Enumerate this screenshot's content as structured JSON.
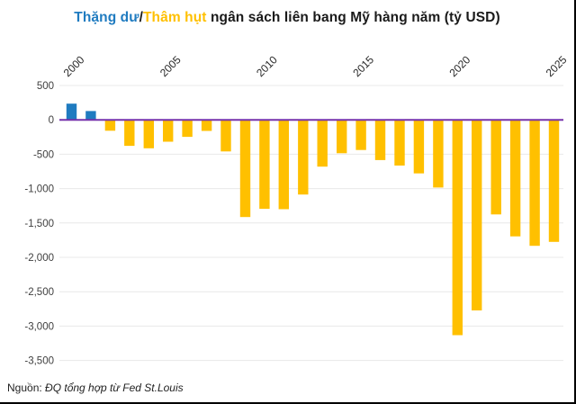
{
  "title": {
    "surplus": "Thặng dư",
    "slash": "/",
    "deficit": "Thâm hụt",
    "rest": " ngân sách liên bang Mỹ hàng năm (tỷ USD)"
  },
  "source": {
    "prefix": "Nguồn: ",
    "text": "ĐQ tổng hợp từ Fed St.Louis"
  },
  "colors": {
    "surplus_bar": "#1f7bc0",
    "deficit_bar": "#ffc000",
    "zero_line": "#7633ab",
    "gridline": "#e8e8e8",
    "title_surplus": "#1f7bc0",
    "title_deficit": "#ffc000",
    "axis_label": "#3f3f3f",
    "x_label": "#262626"
  },
  "chart_data": {
    "type": "bar",
    "title": "Thặng dư/Thâm hụt ngân sách liên bang Mỹ hàng năm (tỷ USD)",
    "ylabel": "tỷ USD",
    "xlabel": "",
    "grid": "horizontal",
    "legend": "none",
    "x_axis_position": "top",
    "ylim": [
      -3500,
      500
    ],
    "categories": [
      2000,
      2001,
      2002,
      2003,
      2004,
      2005,
      2006,
      2007,
      2008,
      2009,
      2010,
      2011,
      2012,
      2013,
      2014,
      2015,
      2016,
      2017,
      2018,
      2019,
      2020,
      2021,
      2022,
      2023,
      2024,
      2025
    ],
    "values": [
      236,
      128,
      -158,
      -378,
      -413,
      -318,
      -248,
      -161,
      -459,
      -1413,
      -1294,
      -1300,
      -1087,
      -680,
      -485,
      -438,
      -585,
      -665,
      -779,
      -984,
      -3132,
      -2772,
      -1375,
      -1695,
      -1833,
      -1775
    ],
    "positive_color": "#1f7bc0",
    "negative_color": "#ffc000",
    "y_ticks": [
      {
        "value": 500,
        "label": "500"
      },
      {
        "value": 0,
        "label": "0"
      },
      {
        "value": -500,
        "label": "-500"
      },
      {
        "value": -1000,
        "label": "-1,000"
      },
      {
        "value": -1500,
        "label": "-1,500"
      },
      {
        "value": -2000,
        "label": "-2,000"
      },
      {
        "value": -2500,
        "label": "-2,500"
      },
      {
        "value": -3000,
        "label": "-3,000"
      },
      {
        "value": -3500,
        "label": "-3,500"
      }
    ],
    "x_ticks": [
      {
        "value": 2000,
        "label": "2000"
      },
      {
        "value": 2005,
        "label": "2005"
      },
      {
        "value": 2010,
        "label": "2010"
      },
      {
        "value": 2015,
        "label": "2015"
      },
      {
        "value": 2020,
        "label": "2020"
      },
      {
        "value": 2025,
        "label": "2025"
      }
    ]
  }
}
